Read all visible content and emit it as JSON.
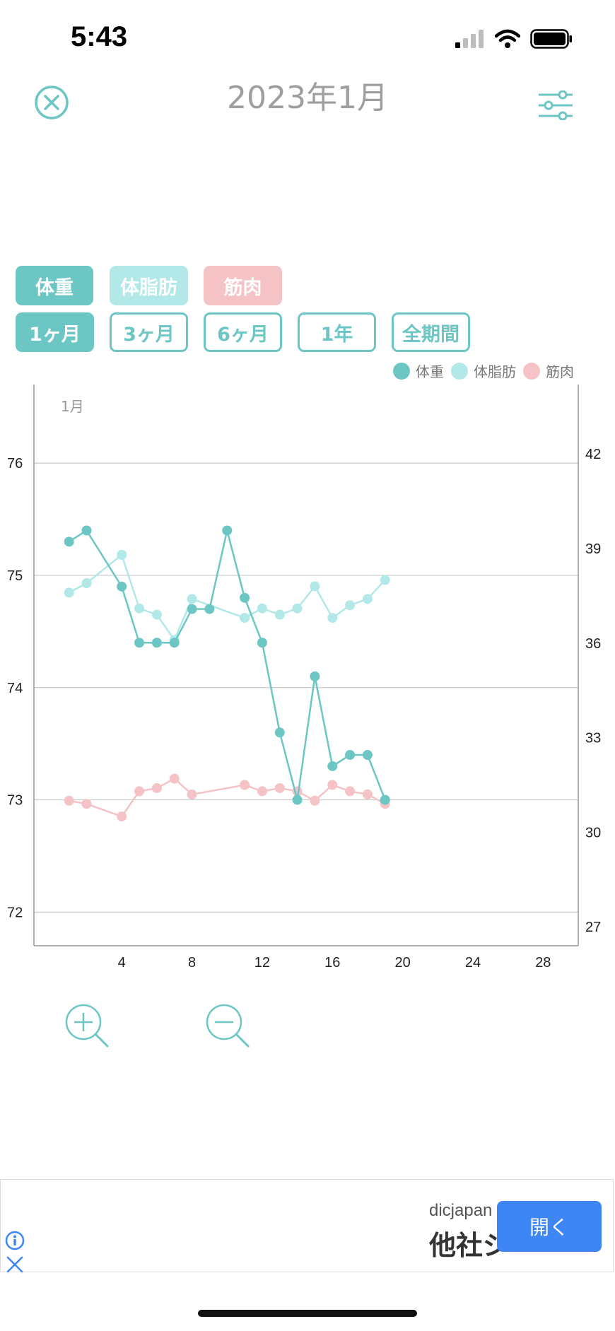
{
  "status_bar": {
    "time": "5:43"
  },
  "header": {
    "title": "2023年1月"
  },
  "type_chips": [
    {
      "label": "体重",
      "color": "#6cc6c4"
    },
    {
      "label": "体脂肪",
      "color": "#b2e8e8"
    },
    {
      "label": "筋肉",
      "color": "#f5c3c6"
    }
  ],
  "period_chips": [
    {
      "label": "1ヶ月",
      "selected": true
    },
    {
      "label": "3ヶ月",
      "selected": false
    },
    {
      "label": "6ヶ月",
      "selected": false
    },
    {
      "label": "1年",
      "selected": false
    },
    {
      "label": "全期間",
      "selected": false
    }
  ],
  "legend": [
    {
      "label": "体重",
      "color": "#6cc6c4"
    },
    {
      "label": "体脂肪",
      "color": "#b2e8e8"
    },
    {
      "label": "筋肉",
      "color": "#f5c3c6"
    }
  ],
  "chart_data": {
    "type": "line",
    "month_label": "1月",
    "grid": true,
    "legend_position": "top-right",
    "x": {
      "range": [
        -1,
        30
      ],
      "ticks": [
        4,
        8,
        12,
        16,
        20,
        24,
        28
      ]
    },
    "y_left": {
      "range": [
        71.7,
        76.7
      ],
      "ticks": [
        72,
        73,
        74,
        75,
        76
      ]
    },
    "y_right": {
      "range": [
        26.4,
        44.2
      ],
      "ticks": [
        27,
        30,
        33,
        36,
        39,
        42
      ]
    },
    "series": [
      {
        "name": "体重",
        "axis": "left",
        "color": "#6cc6c4",
        "points": [
          [
            1,
            75.3
          ],
          [
            2,
            75.4
          ],
          [
            4,
            74.9
          ],
          [
            5,
            74.4
          ],
          [
            6,
            74.4
          ],
          [
            7,
            74.4
          ],
          [
            8,
            74.7
          ],
          [
            9,
            74.7
          ],
          [
            10,
            75.4
          ],
          [
            11,
            74.8
          ],
          [
            12,
            74.4
          ],
          [
            13,
            73.6
          ],
          [
            14,
            73.0
          ],
          [
            15,
            74.1
          ],
          [
            16,
            73.3
          ],
          [
            17,
            73.4
          ],
          [
            18,
            73.4
          ],
          [
            19,
            73.0
          ]
        ]
      },
      {
        "name": "体脂肪",
        "axis": "right",
        "color": "#b2e8e8",
        "points": [
          [
            1,
            37.6
          ],
          [
            2,
            37.9
          ],
          [
            4,
            38.8
          ],
          [
            5,
            37.1
          ],
          [
            6,
            36.9
          ],
          [
            7,
            36.1
          ],
          [
            8,
            37.4
          ],
          [
            11,
            36.8
          ],
          [
            12,
            37.1
          ],
          [
            13,
            36.9
          ],
          [
            14,
            37.1
          ],
          [
            15,
            37.8
          ],
          [
            16,
            36.8
          ],
          [
            17,
            37.2
          ],
          [
            18,
            37.4
          ],
          [
            19,
            38.0
          ]
        ]
      },
      {
        "name": "筋肉",
        "axis": "right",
        "color": "#f5c3c6",
        "points": [
          [
            1,
            31.0
          ],
          [
            2,
            30.9
          ],
          [
            4,
            30.5
          ],
          [
            5,
            31.3
          ],
          [
            6,
            31.4
          ],
          [
            7,
            31.7
          ],
          [
            8,
            31.2
          ],
          [
            11,
            31.5
          ],
          [
            12,
            31.3
          ],
          [
            13,
            31.4
          ],
          [
            14,
            31.3
          ],
          [
            15,
            31.0
          ],
          [
            16,
            31.5
          ],
          [
            17,
            31.3
          ],
          [
            18,
            31.2
          ],
          [
            19,
            30.9
          ]
        ]
      }
    ]
  },
  "ad": {
    "domain": "dicjapan",
    "title": "他社ジ",
    "button": "開く"
  }
}
